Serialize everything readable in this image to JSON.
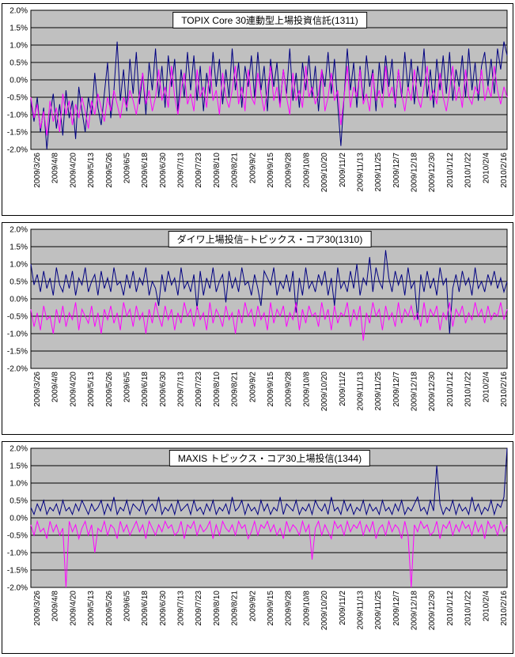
{
  "accent_colors": {
    "plot_bg": "#C0C0C0",
    "grid": "#000000",
    "navy": "#000080",
    "magenta": "#FF00FF"
  },
  "chart_data": [
    {
      "type": "line",
      "title": "TOPIX Core 30連動型上場投資信託(1311)",
      "ylim": [
        -2.0,
        2.0
      ],
      "y_tick_step": 0.5,
      "grid": true,
      "legend": "none",
      "plot_bg": "#C0C0C0",
      "y_ticklabels": [
        "2.0%",
        "1.5%",
        "1.0%",
        "0.5%",
        "0.0%",
        "-0.5%",
        "-1.0%",
        "-1.5%",
        "-2.0%"
      ],
      "x_ticklabels": [
        "2009/3/26",
        "2009/4/8",
        "2009/4/20",
        "2009/5/13",
        "2009/5/26",
        "2009/6/5",
        "2009/6/18",
        "2009/6/30",
        "2009/7/13",
        "2009/7/23",
        "2009/8/10",
        "2009/8/21",
        "2009/9/2",
        "2009/9/15",
        "2009/9/28",
        "2009/10/8",
        "2009/10/20",
        "2009/11/2",
        "2009/11/13",
        "2009/11/25",
        "2009/12/7",
        "2009/12/18",
        "2009/12/30",
        "2010/1/12",
        "2010/1/22",
        "2010/2/4",
        "2010/2/16"
      ],
      "series": [
        {
          "name": "navy",
          "color": "#000080",
          "values": [
            -0.6,
            -1.2,
            -0.5,
            -1.5,
            -0.8,
            -2.0,
            -1.0,
            -0.4,
            -1.4,
            -0.7,
            -1.6,
            -0.3,
            -1.1,
            -0.6,
            -1.7,
            -0.2,
            -0.9,
            -1.5,
            -0.5,
            -1.0,
            0.2,
            -0.8,
            -1.3,
            -0.4,
            0.5,
            -1.1,
            -0.3,
            1.1,
            -0.6,
            0.3,
            -0.9,
            0.6,
            -0.4,
            0.8,
            -0.7,
            0.2,
            -1.0,
            0.5,
            -0.3,
            0.9,
            -0.5,
            0.4,
            -0.8,
            0.7,
            -0.2,
            0.6,
            -0.9,
            0.3,
            -0.5,
            0.8,
            -0.3,
            0.7,
            -0.6,
            0.4,
            -0.9,
            0.2,
            -0.4,
            0.8,
            -0.2,
            0.6,
            -0.7,
            0.3,
            -0.5,
            0.9,
            -0.3,
            0.5,
            -0.8,
            0.4,
            -0.2,
            0.7,
            -0.5,
            0.8,
            -0.3,
            0.4,
            -0.9,
            0.6,
            -0.2,
            0.5,
            -0.7,
            0.3,
            -0.4,
            0.9,
            -0.6,
            0.2,
            -0.8,
            0.5,
            -0.3,
            0.7,
            -0.5,
            0.4,
            -0.9,
            0.3,
            -0.2,
            0.8,
            -0.4,
            0.6,
            -0.7,
            -1.9,
            -0.5,
            0.9,
            -0.3,
            0.5,
            -0.8,
            0.4,
            -0.6,
            0.7,
            -0.2,
            0.3,
            -0.9,
            0.5,
            -0.4,
            0.7,
            -0.2,
            0.6,
            -0.8,
            0.3,
            -0.5,
            0.8,
            -0.3,
            0.6,
            -0.7,
            0.4,
            -0.2,
            0.9,
            -0.5,
            0.3,
            -0.8,
            0.6,
            -0.3,
            0.7,
            -0.4,
            0.8,
            -0.6,
            0.3,
            -0.2,
            0.7,
            -0.5,
            0.9,
            -0.3,
            0.5,
            -0.6,
            0.4,
            0.8,
            -0.2,
            0.6,
            -0.4,
            0.9,
            0.3,
            1.1,
            0.7
          ]
        },
        {
          "name": "magenta",
          "color": "#FF00FF",
          "values": [
            -0.5,
            -1.1,
            -0.7,
            -1.4,
            -0.9,
            -1.6,
            -0.6,
            -1.2,
            -0.8,
            -1.5,
            -0.4,
            -1.0,
            -0.6,
            -1.3,
            -0.7,
            -1.1,
            -0.5,
            -0.9,
            -1.4,
            -0.6,
            -1.0,
            -0.4,
            -0.8,
            -1.2,
            -0.5,
            -0.9,
            -0.3,
            -0.7,
            -1.1,
            -0.5,
            -0.8,
            -0.3,
            -0.6,
            -1.0,
            -0.4,
            0.2,
            -0.7,
            -0.3,
            -0.9,
            -0.5,
            0.3,
            -0.6,
            -0.2,
            -0.8,
            0.4,
            -0.5,
            -1.0,
            -0.3,
            0.2,
            -0.7,
            -0.4,
            -0.9,
            0.3,
            -0.5,
            -0.2,
            -0.8,
            0.4,
            -0.6,
            -0.3,
            -1.0,
            0.2,
            -0.5,
            -0.8,
            -0.3,
            0.4,
            -0.7,
            -0.2,
            -0.9,
            0.3,
            -0.5,
            -0.7,
            0.2,
            -0.4,
            -0.9,
            -0.3,
            0.4,
            -0.6,
            -0.2,
            -0.8,
            0.3,
            -0.5,
            -1.0,
            0.2,
            -0.6,
            -0.3,
            -0.8,
            0.4,
            -0.5,
            -0.2,
            -0.7,
            -0.4,
            0.3,
            -0.9,
            -0.5,
            0.2,
            -0.6,
            -0.3,
            -1.3,
            -0.5,
            0.4,
            -0.8,
            -0.2,
            -0.5,
            0.3,
            -0.7,
            -0.4,
            -0.9,
            0.2,
            -0.6,
            -0.3,
            -0.8,
            0.4,
            -0.5,
            -0.2,
            -0.7,
            0.3,
            -0.4,
            -0.9,
            -0.2,
            -0.6,
            0.3,
            -0.5,
            -0.8,
            -0.2,
            0.4,
            -0.6,
            -0.3,
            -0.7,
            0.2,
            -0.5,
            -0.9,
            -0.3,
            0.4,
            -0.6,
            -0.2,
            -0.8,
            0.3,
            -0.5,
            -0.7,
            -0.2,
            -0.4,
            0.3,
            -0.6,
            -0.2,
            -0.5,
            0.4,
            -0.3,
            -0.7,
            -0.2,
            -0.5
          ]
        }
      ]
    },
    {
      "type": "line",
      "title": "ダイワ上場投信−トピックス・コア30(1310)",
      "ylim": [
        -2.0,
        2.0
      ],
      "y_tick_step": 0.5,
      "grid": true,
      "legend": "none",
      "plot_bg": "#C0C0C0",
      "y_ticklabels": [
        "2.0%",
        "1.5%",
        "1.0%",
        "0.5%",
        "0.0%",
        "-0.5%",
        "-1.0%",
        "-1.5%",
        "-2.0%"
      ],
      "x_ticklabels": [
        "2009/3/26",
        "2009/4/8",
        "2009/4/20",
        "2009/5/13",
        "2009/5/26",
        "2009/6/5",
        "2009/6/18",
        "2009/6/30",
        "2009/7/13",
        "2009/7/23",
        "2009/8/10",
        "2009/8/21",
        "2009/9/2",
        "2009/9/15",
        "2009/9/28",
        "2009/10/8",
        "2009/10/20",
        "2009/11/2",
        "2009/11/13",
        "2009/11/25",
        "2009/12/7",
        "2009/12/18",
        "2009/12/30",
        "2010/1/12",
        "2010/1/22",
        "2010/2/4",
        "2010/2/16"
      ],
      "series": [
        {
          "name": "navy",
          "color": "#000080",
          "values": [
            1.0,
            0.4,
            0.7,
            0.2,
            0.8,
            0.3,
            0.6,
            0.1,
            0.9,
            0.4,
            0.2,
            0.7,
            0.3,
            0.8,
            0.1,
            0.6,
            0.4,
            0.9,
            0.2,
            0.5,
            0.7,
            0.1,
            0.8,
            0.3,
            0.6,
            0.2,
            0.9,
            0.4,
            0.5,
            0.1,
            0.7,
            0.3,
            0.8,
            0.2,
            0.6,
            0.4,
            0.9,
            0.1,
            0.5,
            0.3,
            -0.2,
            0.7,
            0.2,
            0.8,
            0.4,
            0.6,
            0.1,
            0.9,
            0.3,
            0.5,
            0.2,
            0.7,
            -0.3,
            0.8,
            0.1,
            0.6,
            0.3,
            0.9,
            0.2,
            0.5,
            0.7,
            -0.1,
            0.8,
            0.3,
            0.6,
            0.2,
            0.9,
            0.4,
            0.5,
            0.1,
            0.7,
            0.3,
            -0.2,
            0.8,
            0.6,
            0.4,
            0.9,
            0.1,
            0.5,
            0.3,
            0.7,
            0.2,
            0.8,
            -0.4,
            0.6,
            0.1,
            0.9,
            0.3,
            0.5,
            0.2,
            0.7,
            0.4,
            0.8,
            0.1,
            0.6,
            -0.2,
            0.9,
            0.3,
            0.5,
            0.2,
            0.8,
            0.3,
            1.0,
            0.1,
            0.6,
            0.4,
            1.2,
            0.2,
            0.9,
            0.5,
            0.3,
            1.4,
            0.6,
            0.2,
            0.8,
            0.4,
            0.7,
            0.1,
            0.9,
            0.3,
            0.5,
            -0.6,
            0.7,
            0.2,
            0.8,
            0.3,
            0.6,
            0.1,
            0.9,
            0.4,
            0.6,
            -1.0,
            0.3,
            0.7,
            0.2,
            0.8,
            0.4,
            0.6,
            0.1,
            0.9,
            0.3,
            0.5,
            0.2,
            0.7,
            0.4,
            0.8,
            0.3,
            0.6,
            0.2,
            0.5
          ]
        },
        {
          "name": "magenta",
          "color": "#FF00FF",
          "values": [
            -0.3,
            -0.8,
            -0.4,
            -0.9,
            -0.2,
            -0.6,
            -0.5,
            -1.0,
            -0.3,
            -0.7,
            -0.2,
            -0.8,
            -0.4,
            -0.6,
            -0.1,
            -0.9,
            -0.3,
            -0.5,
            -0.7,
            -0.2,
            -0.8,
            -0.4,
            -1.0,
            -0.3,
            -0.6,
            -0.2,
            -0.7,
            -0.4,
            -0.9,
            -0.1,
            -0.5,
            -0.3,
            -0.8,
            -0.2,
            -0.6,
            -0.4,
            -1.0,
            -0.3,
            -0.7,
            -0.1,
            -0.5,
            -0.8,
            -0.2,
            -0.6,
            -0.3,
            -0.9,
            -0.4,
            -0.7,
            -0.1,
            -0.5,
            -0.3,
            -0.8,
            -0.2,
            -0.6,
            -0.4,
            -0.9,
            -0.1,
            -0.7,
            -0.3,
            -0.5,
            -0.8,
            -0.2,
            -0.6,
            -0.4,
            -1.0,
            -0.3,
            -0.7,
            -0.1,
            -0.5,
            -0.3,
            -0.8,
            -0.2,
            -0.6,
            -0.4,
            -0.9,
            -0.1,
            -0.7,
            -0.3,
            -0.5,
            -0.2,
            -0.8,
            -0.4,
            -0.6,
            -0.1,
            -0.9,
            -0.3,
            -0.7,
            -0.2,
            -0.5,
            -0.4,
            -0.8,
            -0.1,
            -0.6,
            -0.3,
            -0.9,
            -0.2,
            -0.7,
            -0.4,
            -0.5,
            -0.1,
            -0.8,
            -0.3,
            -0.6,
            -0.2,
            -1.2,
            -0.4,
            -0.7,
            -0.1,
            -0.5,
            -0.3,
            -0.9,
            -0.2,
            -0.6,
            -0.4,
            -0.8,
            -0.1,
            -0.7,
            -0.3,
            -0.5,
            -0.2,
            -0.6,
            -0.4,
            -0.8,
            -0.1,
            -0.7,
            -0.3,
            -0.5,
            -0.2,
            -0.9,
            -0.4,
            -0.6,
            -0.1,
            -0.8,
            -0.3,
            -0.5,
            -0.2,
            -0.7,
            -0.4,
            -0.6,
            -0.1,
            -0.5,
            -0.3,
            -0.7,
            -0.2,
            -0.6,
            -0.4,
            -0.5,
            -0.1,
            -0.6,
            -0.3
          ]
        }
      ]
    },
    {
      "type": "line",
      "title": "MAXIS トピックス・コア30上場投信(1344)",
      "ylim": [
        -2.0,
        2.0
      ],
      "y_tick_step": 0.5,
      "grid": true,
      "legend": "none",
      "plot_bg": "#C0C0C0",
      "y_ticklabels": [
        "2.0%",
        "1.5%",
        "1.0%",
        "0.5%",
        "0.0%",
        "-0.5%",
        "-1.0%",
        "-1.5%",
        "-2.0%"
      ],
      "x_ticklabels": [
        "2009/3/26",
        "2009/4/8",
        "2009/4/20",
        "2009/5/13",
        "2009/5/26",
        "2009/6/5",
        "2009/6/18",
        "2009/6/30",
        "2009/7/13",
        "2009/7/23",
        "2009/8/10",
        "2009/8/21",
        "2009/9/2",
        "2009/9/15",
        "2009/9/28",
        "2009/10/8",
        "2009/10/20",
        "2009/11/2",
        "2009/11/13",
        "2009/11/25",
        "2009/12/7",
        "2009/12/18",
        "2009/12/30",
        "2010/1/12",
        "2010/1/22",
        "2010/2/4",
        "2010/2/16"
      ],
      "series": [
        {
          "name": "navy",
          "color": "#000080",
          "values": [
            0.3,
            0.1,
            0.4,
            0.2,
            0.5,
            0.1,
            0.3,
            0.2,
            0.4,
            0.1,
            0.5,
            0.2,
            0.3,
            0.1,
            0.4,
            0.2,
            0.5,
            0.3,
            0.1,
            0.4,
            0.2,
            0.3,
            0.5,
            0.1,
            0.4,
            0.2,
            0.6,
            0.1,
            0.3,
            0.2,
            0.5,
            0.1,
            0.4,
            0.3,
            0.2,
            0.5,
            0.1,
            0.3,
            0.4,
            0.2,
            0.6,
            0.1,
            0.3,
            0.2,
            0.4,
            0.1,
            0.5,
            0.2,
            0.3,
            0.4,
            0.1,
            0.5,
            0.2,
            0.3,
            0.1,
            0.4,
            0.2,
            0.5,
            0.1,
            0.3,
            0.2,
            0.4,
            0.1,
            0.6,
            0.2,
            0.3,
            0.5,
            0.1,
            0.4,
            0.2,
            0.3,
            0.1,
            0.5,
            0.2,
            0.4,
            0.1,
            0.3,
            0.2,
            0.6,
            0.1,
            0.4,
            0.3,
            0.2,
            0.5,
            0.1,
            0.3,
            0.2,
            0.4,
            0.1,
            0.5,
            0.3,
            0.2,
            0.4,
            0.1,
            0.6,
            0.2,
            0.3,
            0.1,
            0.5,
            0.2,
            0.4,
            0.1,
            0.3,
            0.2,
            0.5,
            0.1,
            0.4,
            0.2,
            0.3,
            0.1,
            0.5,
            0.2,
            0.3,
            0.1,
            0.4,
            0.2,
            0.5,
            0.1,
            0.3,
            0.2,
            0.4,
            0.6,
            0.2,
            0.3,
            0.1,
            0.5,
            0.2,
            1.5,
            0.4,
            0.1,
            0.3,
            0.2,
            0.5,
            0.1,
            0.4,
            0.2,
            0.3,
            0.1,
            0.6,
            0.2,
            0.4,
            0.1,
            0.3,
            0.2,
            0.5,
            0.1,
            0.4,
            0.3,
            0.6,
            2.0
          ]
        },
        {
          "name": "magenta",
          "color": "#FF00FF",
          "values": [
            -0.2,
            -0.5,
            -0.1,
            -0.4,
            -0.3,
            -0.6,
            -0.1,
            -0.4,
            -0.2,
            -0.5,
            -0.3,
            -2.0,
            -0.1,
            -0.4,
            -0.2,
            -0.6,
            -0.3,
            -0.1,
            -0.5,
            -0.2,
            -1.0,
            -0.3,
            -0.4,
            -0.1,
            -0.5,
            -0.2,
            -0.3,
            -0.6,
            -0.1,
            -0.4,
            -0.2,
            -0.5,
            -0.3,
            -0.1,
            -0.4,
            -0.2,
            -0.6,
            -0.1,
            -0.3,
            -0.5,
            -0.2,
            -0.4,
            -0.1,
            -0.3,
            -0.2,
            -0.5,
            -0.4,
            -0.1,
            -0.6,
            -0.2,
            -0.3,
            -0.1,
            -0.5,
            -0.2,
            -0.4,
            -0.3,
            -0.1,
            -0.6,
            -0.2,
            -0.5,
            -0.1,
            -0.3,
            -0.4,
            -0.2,
            -0.5,
            -0.1,
            -0.3,
            -0.2,
            -0.6,
            -0.4,
            -0.1,
            -0.5,
            -0.2,
            -0.3,
            -0.1,
            -0.4,
            -0.2,
            -0.5,
            -0.3,
            -0.6,
            -0.1,
            -0.4,
            -0.2,
            -0.3,
            -0.5,
            -0.1,
            -0.4,
            -0.2,
            -1.2,
            -0.3,
            -0.1,
            -0.5,
            -0.2,
            -0.4,
            -0.6,
            -0.1,
            -0.3,
            -0.2,
            -0.5,
            -0.1,
            -0.4,
            -0.2,
            -0.3,
            -0.1,
            -0.5,
            -0.2,
            -0.4,
            -0.1,
            -0.6,
            -0.3,
            -0.2,
            -0.5,
            -0.1,
            -0.4,
            -0.2,
            -0.3,
            -0.6,
            -0.1,
            -0.5,
            -2.0,
            -0.2,
            -0.4,
            -0.1,
            -0.3,
            -0.2,
            -0.5,
            -0.4,
            -0.1,
            -0.6,
            -0.2,
            -0.3,
            -0.1,
            -0.5,
            -0.2,
            -0.4,
            -0.1,
            -0.3,
            -0.2,
            -0.5,
            -0.1,
            -0.4,
            -0.2,
            -0.6,
            -0.1,
            -0.3,
            -0.2,
            -0.5,
            -0.1,
            -0.4,
            -0.2
          ]
        }
      ]
    }
  ]
}
